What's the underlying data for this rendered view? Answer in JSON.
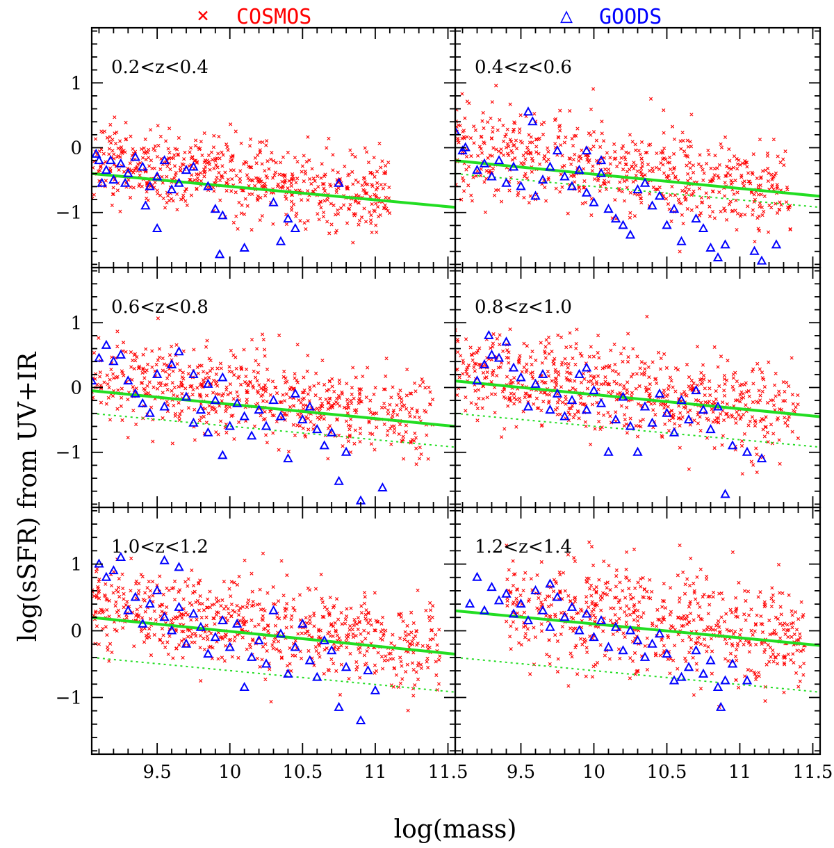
{
  "chart_data": {
    "type": "scatter",
    "xlabel": "log(mass)",
    "ylabel": "log(sSFR) from UV+IR",
    "xlim": [
      9.05,
      11.55
    ],
    "ylim": [
      -1.85,
      1.85
    ],
    "xticks": [
      9.5,
      10,
      10.5,
      11,
      11.5
    ],
    "xtick_labels": [
      "9.5",
      "10",
      "10.5",
      "11",
      "11.5"
    ],
    "yticks": [
      -1,
      0,
      1
    ],
    "ytick_labels": [
      "−1",
      "0",
      "1"
    ],
    "legend": [
      {
        "name": "COSMOS",
        "marker": "×",
        "color": "#ff0000"
      },
      {
        "name": "GOODS",
        "marker": "△",
        "color": "#0000ff"
      }
    ],
    "colors": {
      "cosmos": "#ff0000",
      "goods": "#0000ff",
      "fit": "#22dd22",
      "frame": "#000000"
    },
    "reference_line": {
      "x": [
        9.05,
        11.55
      ],
      "y": [
        -0.4,
        -0.92
      ],
      "style": "dotted"
    },
    "panels": [
      {
        "label": "0.2<z<0.4",
        "fit": {
          "x": [
            9.05,
            11.55
          ],
          "y": [
            -0.4,
            -0.92
          ]
        },
        "show_reference": false,
        "goods": [
          [
            9.08,
            -0.1
          ],
          [
            9.1,
            -0.2
          ],
          [
            9.12,
            -0.55
          ],
          [
            9.15,
            -0.35
          ],
          [
            9.18,
            -0.2
          ],
          [
            9.2,
            -0.5
          ],
          [
            9.25,
            -0.25
          ],
          [
            9.3,
            -0.4
          ],
          [
            9.35,
            -0.15
          ],
          [
            9.4,
            -0.3
          ],
          [
            9.45,
            -0.6
          ],
          [
            9.5,
            -0.45
          ],
          [
            9.55,
            -0.2
          ],
          [
            9.6,
            -0.65
          ],
          [
            9.42,
            -0.9
          ],
          [
            9.5,
            -1.25
          ],
          [
            9.65,
            -0.55
          ],
          [
            9.75,
            -0.3
          ],
          [
            9.85,
            -0.6
          ],
          [
            9.9,
            -0.95
          ],
          [
            9.95,
            -1.05
          ],
          [
            9.93,
            -1.65
          ],
          [
            10.1,
            -1.55
          ],
          [
            10.3,
            -0.85
          ],
          [
            10.4,
            -1.1
          ],
          [
            10.45,
            -1.25
          ],
          [
            10.35,
            -1.45
          ],
          [
            10.75,
            -0.55
          ],
          [
            9.7,
            -0.35
          ],
          [
            9.28,
            -0.55
          ]
        ],
        "cosmos_dist": {
          "x0": 9.05,
          "x1": 11.1,
          "scatter": 0.3,
          "n": 650,
          "hi": 0.55,
          "lo": -1.85,
          "slope": -0.45
        }
      },
      {
        "label": "0.4<z<0.6",
        "fit": {
          "x": [
            9.05,
            11.55
          ],
          "y": [
            -0.2,
            -0.75
          ]
        },
        "show_reference": true,
        "goods": [
          [
            9.05,
            0.25
          ],
          [
            9.1,
            -0.05
          ],
          [
            9.12,
            0.0
          ],
          [
            9.2,
            -0.35
          ],
          [
            9.25,
            -0.25
          ],
          [
            9.3,
            -0.45
          ],
          [
            9.35,
            -0.2
          ],
          [
            9.4,
            -0.55
          ],
          [
            9.45,
            -0.3
          ],
          [
            9.5,
            -0.6
          ],
          [
            9.55,
            0.55
          ],
          [
            9.58,
            0.4
          ],
          [
            9.6,
            -0.75
          ],
          [
            9.65,
            -0.5
          ],
          [
            9.7,
            -0.3
          ],
          [
            9.75,
            -0.05
          ],
          [
            9.8,
            -0.45
          ],
          [
            9.85,
            -0.6
          ],
          [
            9.9,
            -0.35
          ],
          [
            9.95,
            -0.7
          ],
          [
            10.0,
            -0.85
          ],
          [
            10.05,
            -0.4
          ],
          [
            10.1,
            -0.95
          ],
          [
            10.15,
            -1.1
          ],
          [
            10.2,
            -1.2
          ],
          [
            10.25,
            -1.35
          ],
          [
            10.3,
            -0.65
          ],
          [
            10.35,
            -0.55
          ],
          [
            10.4,
            -0.9
          ],
          [
            10.45,
            -0.75
          ],
          [
            10.5,
            -1.2
          ],
          [
            10.55,
            -0.95
          ],
          [
            10.6,
            -1.45
          ],
          [
            10.7,
            -1.1
          ],
          [
            10.75,
            -1.25
          ],
          [
            10.8,
            -1.55
          ],
          [
            10.85,
            -1.7
          ],
          [
            10.9,
            -1.5
          ],
          [
            11.1,
            -1.6
          ],
          [
            11.15,
            -1.75
          ],
          [
            11.25,
            -1.5
          ],
          [
            9.95,
            -0.05
          ],
          [
            10.05,
            -0.2
          ]
        ],
        "cosmos_dist": {
          "x0": 9.05,
          "x1": 11.35,
          "scatter": 0.35,
          "n": 650,
          "hi": 1.0,
          "lo": -1.85,
          "slope": -0.45
        }
      },
      {
        "label": "0.6<z<0.8",
        "fit": {
          "x": [
            9.05,
            11.55
          ],
          "y": [
            -0.05,
            -0.6
          ]
        },
        "show_reference": true,
        "goods": [
          [
            9.05,
            0.1
          ],
          [
            9.1,
            0.45
          ],
          [
            9.15,
            0.65
          ],
          [
            9.2,
            0.4
          ],
          [
            9.25,
            0.5
          ],
          [
            9.3,
            0.1
          ],
          [
            9.35,
            -0.1
          ],
          [
            9.4,
            -0.25
          ],
          [
            9.45,
            -0.4
          ],
          [
            9.5,
            0.2
          ],
          [
            9.55,
            -0.3
          ],
          [
            9.6,
            0.35
          ],
          [
            9.65,
            0.55
          ],
          [
            9.7,
            -0.15
          ],
          [
            9.75,
            -0.55
          ],
          [
            9.8,
            -0.35
          ],
          [
            9.85,
            -0.7
          ],
          [
            9.9,
            -0.2
          ],
          [
            9.95,
            -1.05
          ],
          [
            10.0,
            -0.6
          ],
          [
            10.05,
            -0.25
          ],
          [
            10.1,
            -0.45
          ],
          [
            10.15,
            -0.75
          ],
          [
            10.2,
            -0.35
          ],
          [
            10.25,
            -0.6
          ],
          [
            10.3,
            -0.2
          ],
          [
            10.35,
            -0.45
          ],
          [
            10.4,
            -1.1
          ],
          [
            10.45,
            -0.1
          ],
          [
            10.5,
            -0.5
          ],
          [
            10.55,
            -0.3
          ],
          [
            10.6,
            -0.65
          ],
          [
            10.65,
            -0.9
          ],
          [
            10.7,
            -0.7
          ],
          [
            10.75,
            -1.45
          ],
          [
            10.8,
            -1.0
          ],
          [
            10.9,
            -1.75
          ],
          [
            11.05,
            -1.55
          ],
          [
            9.75,
            0.2
          ],
          [
            9.85,
            0.05
          ],
          [
            9.95,
            0.15
          ]
        ],
        "cosmos_dist": {
          "x0": 9.05,
          "x1": 11.4,
          "scatter": 0.35,
          "n": 650,
          "hi": 1.15,
          "lo": -1.85,
          "slope": -0.45
        }
      },
      {
        "label": "0.8<z<1.0",
        "fit": {
          "x": [
            9.05,
            11.55
          ],
          "y": [
            0.1,
            -0.45
          ]
        },
        "show_reference": true,
        "goods": [
          [
            9.2,
            0.1
          ],
          [
            9.25,
            0.35
          ],
          [
            9.28,
            0.8
          ],
          [
            9.3,
            0.5
          ],
          [
            9.35,
            0.45
          ],
          [
            9.4,
            0.7
          ],
          [
            9.45,
            0.3
          ],
          [
            9.5,
            0.15
          ],
          [
            9.55,
            -0.3
          ],
          [
            9.6,
            0.05
          ],
          [
            9.65,
            0.2
          ],
          [
            9.7,
            -0.35
          ],
          [
            9.75,
            -0.1
          ],
          [
            9.8,
            -0.45
          ],
          [
            9.85,
            -0.2
          ],
          [
            9.9,
            0.2
          ],
          [
            9.95,
            -0.35
          ],
          [
            10.0,
            -0.05
          ],
          [
            10.05,
            -0.25
          ],
          [
            10.1,
            -1.0
          ],
          [
            10.15,
            -0.5
          ],
          [
            10.2,
            -0.15
          ],
          [
            10.25,
            -0.6
          ],
          [
            10.3,
            -1.0
          ],
          [
            10.35,
            -0.3
          ],
          [
            10.4,
            -0.55
          ],
          [
            10.45,
            -0.1
          ],
          [
            10.5,
            -0.4
          ],
          [
            10.55,
            -0.7
          ],
          [
            10.6,
            -0.2
          ],
          [
            10.65,
            -0.5
          ],
          [
            10.7,
            -0.05
          ],
          [
            10.75,
            -0.35
          ],
          [
            10.8,
            -0.65
          ],
          [
            10.85,
            -0.3
          ],
          [
            10.95,
            -0.9
          ],
          [
            11.05,
            -1.0
          ],
          [
            11.15,
            -1.1
          ],
          [
            10.9,
            -1.65
          ],
          [
            9.95,
            0.3
          ]
        ],
        "cosmos_dist": {
          "x0": 9.05,
          "x1": 11.4,
          "scatter": 0.35,
          "n": 700,
          "hi": 1.35,
          "lo": -1.6,
          "slope": -0.42
        }
      },
      {
        "label": "1.0<z<1.2",
        "fit": {
          "x": [
            9.05,
            11.55
          ],
          "y": [
            0.2,
            -0.35
          ]
        },
        "show_reference": true,
        "goods": [
          [
            9.1,
            1.0
          ],
          [
            9.15,
            0.8
          ],
          [
            9.2,
            0.9
          ],
          [
            9.25,
            1.1
          ],
          [
            9.3,
            0.3
          ],
          [
            9.35,
            0.5
          ],
          [
            9.4,
            0.1
          ],
          [
            9.45,
            0.4
          ],
          [
            9.5,
            0.6
          ],
          [
            9.55,
            0.2
          ],
          [
            9.6,
            0.0
          ],
          [
            9.65,
            0.35
          ],
          [
            9.7,
            -0.2
          ],
          [
            9.75,
            0.25
          ],
          [
            9.8,
            0.05
          ],
          [
            9.85,
            -0.35
          ],
          [
            9.9,
            -0.1
          ],
          [
            9.95,
            0.15
          ],
          [
            10.0,
            -0.25
          ],
          [
            10.05,
            0.1
          ],
          [
            10.1,
            -0.85
          ],
          [
            10.15,
            -0.4
          ],
          [
            10.2,
            -0.15
          ],
          [
            10.25,
            -0.5
          ],
          [
            10.3,
            0.3
          ],
          [
            10.35,
            -0.05
          ],
          [
            10.4,
            -0.65
          ],
          [
            10.45,
            -0.25
          ],
          [
            10.5,
            0.1
          ],
          [
            10.55,
            -0.45
          ],
          [
            10.6,
            -0.7
          ],
          [
            10.65,
            -0.15
          ],
          [
            10.7,
            -0.3
          ],
          [
            10.75,
            -1.15
          ],
          [
            10.8,
            -0.55
          ],
          [
            10.9,
            -1.35
          ],
          [
            11.0,
            -0.9
          ],
          [
            10.95,
            -0.6
          ],
          [
            9.65,
            0.95
          ],
          [
            9.55,
            1.05
          ]
        ],
        "cosmos_dist": {
          "x0": 9.05,
          "x1": 11.45,
          "scatter": 0.35,
          "n": 700,
          "hi": 1.75,
          "lo": -1.3,
          "slope": -0.4
        }
      },
      {
        "label": "1.2<z<1.4",
        "fit": {
          "x": [
            9.05,
            11.55
          ],
          "y": [
            0.3,
            -0.22
          ]
        },
        "show_reference": true,
        "goods": [
          [
            9.15,
            0.4
          ],
          [
            9.2,
            0.8
          ],
          [
            9.25,
            0.3
          ],
          [
            9.3,
            0.65
          ],
          [
            9.35,
            0.45
          ],
          [
            9.4,
            0.55
          ],
          [
            9.45,
            0.25
          ],
          [
            9.5,
            0.4
          ],
          [
            9.55,
            0.15
          ],
          [
            9.6,
            0.6
          ],
          [
            9.65,
            0.3
          ],
          [
            9.7,
            0.05
          ],
          [
            9.75,
            0.5
          ],
          [
            9.8,
            0.2
          ],
          [
            9.85,
            0.35
          ],
          [
            9.9,
            0.0
          ],
          [
            9.95,
            0.25
          ],
          [
            10.0,
            -0.1
          ],
          [
            10.05,
            0.15
          ],
          [
            10.1,
            -0.25
          ],
          [
            10.15,
            0.05
          ],
          [
            10.2,
            -0.3
          ],
          [
            10.25,
            0.0
          ],
          [
            10.3,
            -0.15
          ],
          [
            10.35,
            -0.4
          ],
          [
            10.4,
            -0.2
          ],
          [
            10.45,
            -0.05
          ],
          [
            10.5,
            -0.35
          ],
          [
            10.55,
            -0.75
          ],
          [
            10.6,
            -0.7
          ],
          [
            10.65,
            -0.55
          ],
          [
            10.7,
            -0.3
          ],
          [
            10.75,
            -0.65
          ],
          [
            10.8,
            -0.45
          ],
          [
            10.85,
            -0.85
          ],
          [
            10.9,
            -0.75
          ],
          [
            10.95,
            -0.5
          ],
          [
            11.05,
            -0.75
          ],
          [
            10.87,
            -1.15
          ],
          [
            9.7,
            0.7
          ]
        ],
        "cosmos_dist": {
          "x0": 9.4,
          "x1": 11.45,
          "scatter": 0.4,
          "n": 620,
          "hi": 1.8,
          "lo": -1.2,
          "slope": -0.4
        }
      }
    ]
  }
}
